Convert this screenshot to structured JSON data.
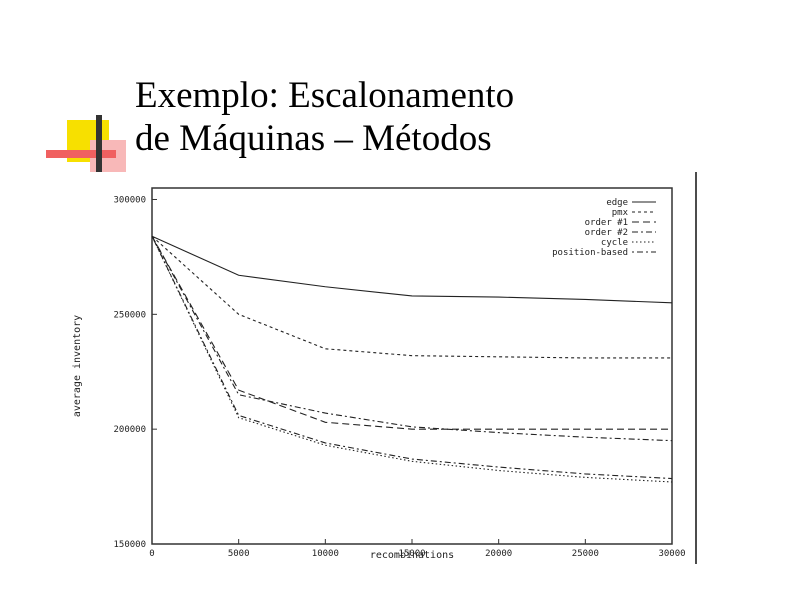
{
  "slide": {
    "title_line1": "Exemplo: Escalonamento",
    "title_line2": "de Máquinas – Métodos"
  },
  "colors": {
    "accent_yellow": "#f7e000",
    "accent_red": "#f06060",
    "accent_pink": "#f8b8b8",
    "bar_dark": "#333333"
  },
  "chart_data": {
    "type": "line",
    "xlabel": "recombinations",
    "ylabel": "average inventory",
    "xlim": [
      0,
      30000
    ],
    "ylim": [
      150000,
      305000
    ],
    "x_ticks": [
      "0",
      "5000",
      "10000",
      "15000",
      "20000",
      "25000",
      "30000"
    ],
    "y_ticks": [
      "150000",
      "200000",
      "250000",
      "300000"
    ],
    "x": [
      0,
      5000,
      10000,
      15000,
      20000,
      25000,
      30000
    ],
    "series": [
      {
        "name": "edge",
        "values": [
          284000,
          267000,
          262000,
          258000,
          257500,
          256500,
          255000
        ]
      },
      {
        "name": "pmx",
        "values": [
          284000,
          250000,
          235000,
          232000,
          231500,
          231000,
          231000
        ]
      },
      {
        "name": "order #1",
        "values": [
          284000,
          217000,
          203000,
          200000,
          200000,
          200000,
          200000
        ]
      },
      {
        "name": "order #2",
        "values": [
          284000,
          215000,
          207000,
          201000,
          198500,
          196500,
          195000
        ]
      },
      {
        "name": "cycle",
        "values": [
          284000,
          205000,
          193000,
          186000,
          182000,
          179000,
          177000
        ]
      },
      {
        "name": "position-based",
        "values": [
          284000,
          206000,
          194000,
          187000,
          183500,
          180500,
          178500
        ]
      }
    ],
    "legend_position": "top-right",
    "grid": false
  }
}
